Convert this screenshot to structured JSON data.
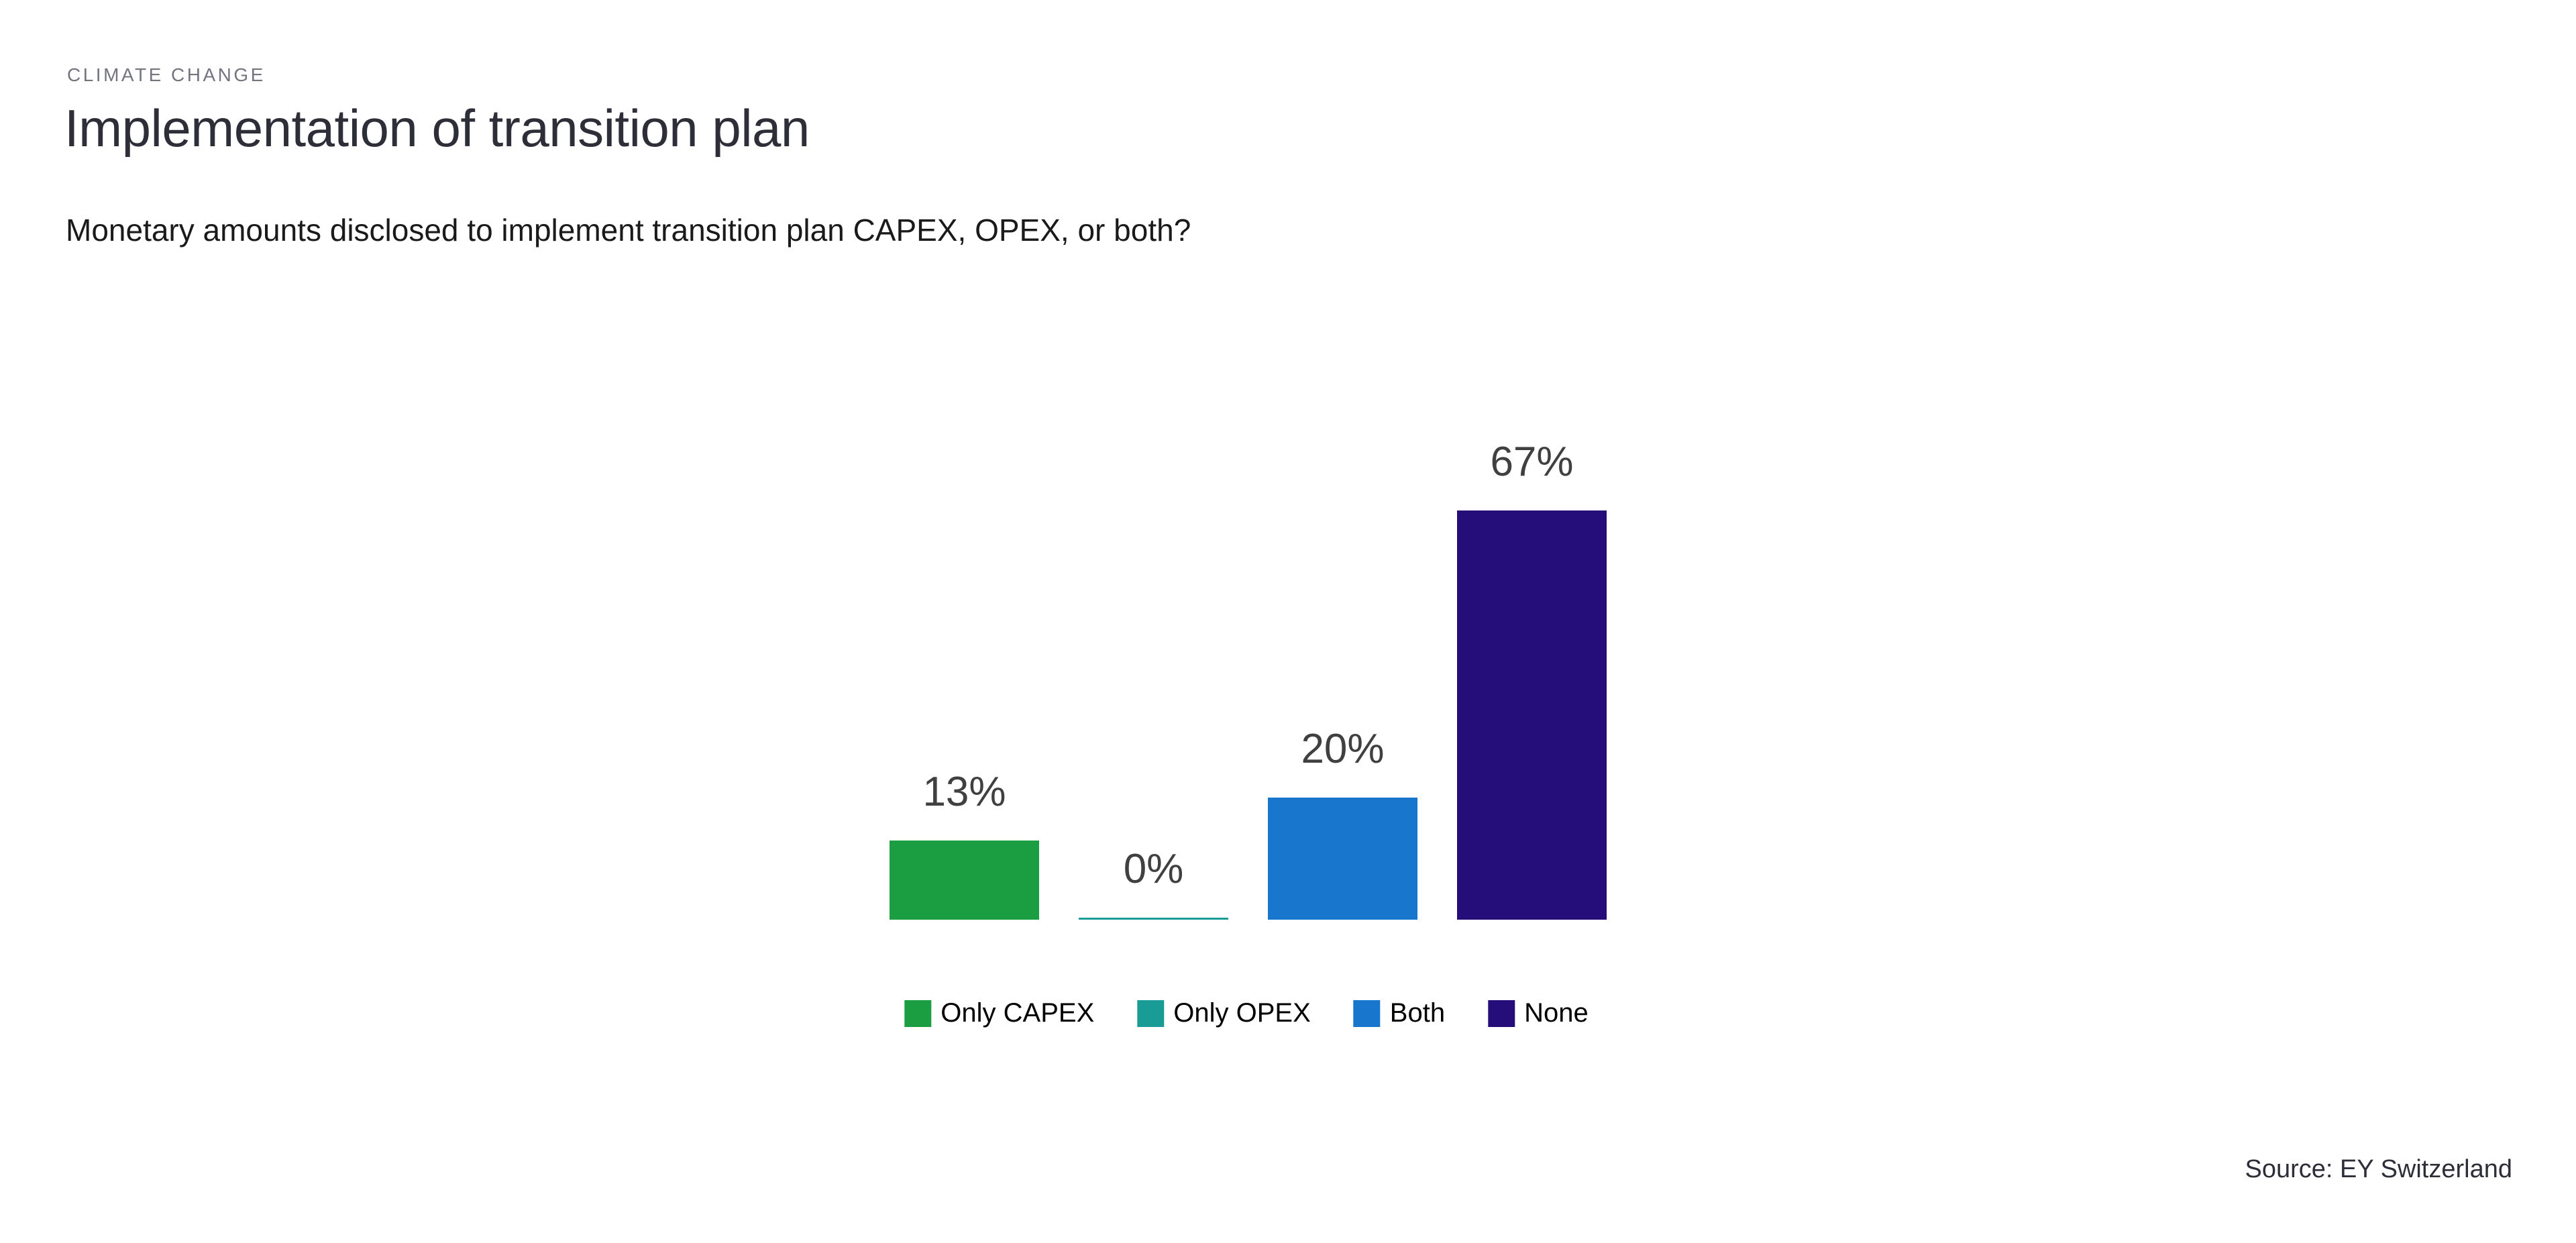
{
  "header": {
    "eyebrow": "CLIMATE CHANGE",
    "title": "Implementation of transition plan",
    "subtitle": "Monetary amounts disclosed to implement transition plan CAPEX, OPEX, or both?"
  },
  "chart_data": {
    "type": "bar",
    "title": "Implementation of transition plan",
    "question": "Monetary amounts disclosed to implement transition plan CAPEX, OPEX, or both?",
    "categories": [
      "Only CAPEX",
      "Only OPEX",
      "Both",
      "None"
    ],
    "values": [
      13,
      0,
      20,
      67
    ],
    "value_labels": [
      "13%",
      "0%",
      "20%",
      "67%"
    ],
    "unit": "%",
    "series_colors": [
      "#1b9e42",
      "#1a9c96",
      "#1877cd",
      "#250e79"
    ],
    "value_label_color": "#404040",
    "xlabel": "",
    "ylabel": "",
    "ylim": [
      0,
      100
    ],
    "grid": false,
    "axes_shown": false,
    "legend": [
      "Only CAPEX",
      "Only OPEX",
      "Both",
      "None"
    ],
    "legend_position": "bottom"
  },
  "footer": {
    "source": "Source: EY Switzerland"
  }
}
